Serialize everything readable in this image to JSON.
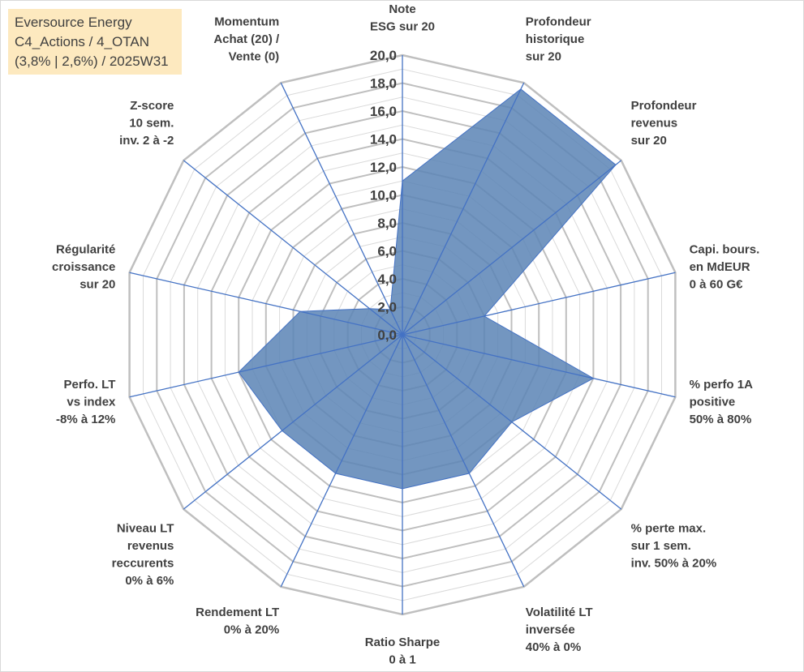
{
  "info": {
    "line1": "Eversource Energy",
    "line2": "C4_Actions / 4_OTAN",
    "line3": "(3,8% | 2,6%) / 2025W31"
  },
  "colors": {
    "fill": "#5a84b5",
    "stroke": "#4472c4",
    "grid_major": "#bfbfbf",
    "grid_minor": "#dadada",
    "text": "#404040",
    "info_bg": "#fde9bf"
  },
  "chart_data": {
    "type": "radar",
    "rlim": [
      0,
      20
    ],
    "tick_labels": [
      "0,0",
      "2,0",
      "4,0",
      "6,0",
      "8,0",
      "10,0",
      "12,0",
      "14,0",
      "16,0",
      "18,0",
      "20,0"
    ],
    "grid": true,
    "categories": [
      [
        "Note",
        "ESG sur 20"
      ],
      [
        "Profondeur",
        "historique",
        "sur 20"
      ],
      [
        "Profondeur",
        "revenus",
        "sur 20"
      ],
      [
        "Capi. bours.",
        "en MdEUR",
        "0 à 60 G€"
      ],
      [
        "% perfo 1A",
        "positive",
        "50% à 80%"
      ],
      [
        "% perte max.",
        "sur 1 sem.",
        "inv. 50% à 20%"
      ],
      [
        "Volatilité LT",
        "inversée",
        "40% à 0%"
      ],
      [
        "Ratio Sharpe",
        "0 à 1"
      ],
      [
        "Rendement LT",
        "0% à 20%"
      ],
      [
        "Niveau LT",
        "revenus",
        "reccurents",
        "0% à 6%"
      ],
      [
        "Perfo. LT",
        "vs index",
        "-8% à 12%"
      ],
      [
        "Régularité",
        "croissance",
        "sur 20"
      ],
      [
        "Z-score",
        "10 sem.",
        "inv. 2 à -2"
      ],
      [
        "Momentum",
        "Achat (20) /",
        "Vente (0)"
      ]
    ],
    "values": [
      11.0,
      19.5,
      19.5,
      6.0,
      14.0,
      10.0,
      11.0,
      11.0,
      11.0,
      11.0,
      12.0,
      7.5,
      3.0,
      2.0
    ]
  }
}
